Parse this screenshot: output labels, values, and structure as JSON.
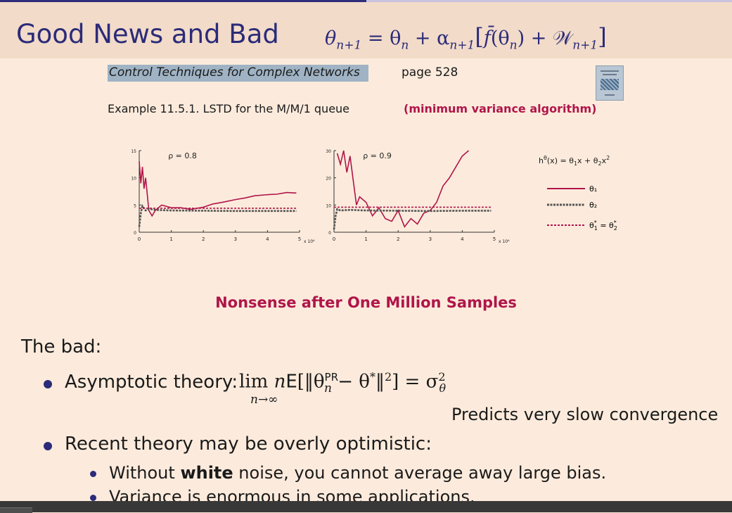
{
  "slide": {
    "title": "Good News and Bad",
    "progress_fraction": 0.5,
    "theme_color": "#2b2b79",
    "accent_color": "#b0154a"
  },
  "header_equation": {
    "lhs": "θ",
    "lhs_sub": "n+1",
    "eq": " = θ",
    "term_sub": "n",
    "plus_alpha": " + α",
    "alpha_sub": "n+1",
    "bracket_open": "[",
    "fbar": "f̄",
    "arg_open": "(θ",
    "arg_sub": "n",
    "arg_close": ")",
    "plus_w": " + 𝒲",
    "w_sub": "n+1",
    "bracket_close": "]"
  },
  "reference": {
    "book_title": "Control Techniques for Complex Networks",
    "page": "page 528",
    "example": "Example 11.5.1.  LSTD for the M/M/1 queue",
    "example_note": "(minimum variance algorithm)"
  },
  "chart_data": [
    {
      "type": "line",
      "title": "ρ = 0.8",
      "x_ticks": [
        "0",
        "1",
        "2",
        "3",
        "4",
        "5"
      ],
      "x_multiplier": "x 10⁶",
      "y_ticks": [
        "0",
        "5",
        "10",
        "15"
      ],
      "ylim": [
        0,
        15
      ],
      "xlim": [
        0,
        5
      ],
      "series": [
        {
          "name": "θ₁",
          "color": "#b0154a",
          "x": [
            0,
            0.05,
            0.1,
            0.15,
            0.2,
            0.25,
            0.3,
            0.4,
            0.5,
            0.7,
            1.0,
            1.3,
            1.6,
            2.0,
            2.3,
            2.6,
            3.0,
            3.3,
            3.6,
            4.0,
            4.3,
            4.6,
            4.9
          ],
          "y": [
            13,
            9,
            12,
            8,
            10,
            7,
            4,
            3,
            4,
            5,
            4.5,
            4.5,
            4.2,
            4.6,
            5.2,
            5.5,
            6.0,
            6.3,
            6.7,
            6.9,
            7.0,
            7.3,
            7.2
          ]
        },
        {
          "name": "θ₂",
          "color": "#555555",
          "x": [
            0,
            0.05,
            0.1,
            0.2,
            0.3,
            0.5,
            1.0,
            2.0,
            3.0,
            4.0,
            4.9
          ],
          "y": [
            1,
            3.5,
            4.8,
            4.0,
            4.3,
            4.1,
            4.0,
            3.95,
            3.9,
            3.9,
            3.9
          ]
        },
        {
          "name": "θ₁* = θ₂*",
          "color": "#b0154a",
          "x": [
            0,
            4.9
          ],
          "y": [
            4.4,
            4.4
          ]
        }
      ]
    },
    {
      "type": "line",
      "title": "ρ = 0.9",
      "x_ticks": [
        "0",
        "1",
        "2",
        "3",
        "4",
        "5"
      ],
      "x_multiplier": "x 10⁶",
      "y_ticks": [
        "0",
        "10",
        "20",
        "30"
      ],
      "ylim": [
        0,
        30
      ],
      "xlim": [
        0,
        5
      ],
      "series": [
        {
          "name": "θ₁",
          "color": "#b0154a",
          "x": [
            0.1,
            0.2,
            0.3,
            0.4,
            0.5,
            0.6,
            0.7,
            0.8,
            0.9,
            1.0,
            1.2,
            1.4,
            1.6,
            1.8,
            2.0,
            2.2,
            2.4,
            2.6,
            2.8,
            3.0,
            3.2,
            3.4,
            3.6,
            3.8,
            4.0,
            4.2
          ],
          "y": [
            29,
            25,
            30,
            22,
            28,
            19,
            10,
            13,
            12,
            11,
            6,
            9,
            5,
            4,
            8,
            2,
            5,
            3,
            7,
            8,
            11,
            17,
            20,
            24,
            28,
            30
          ]
        },
        {
          "name": "θ₂",
          "color": "#555555",
          "x": [
            0,
            0.05,
            0.1,
            0.2,
            0.5,
            1.0,
            2.0,
            3.0,
            4.0,
            4.9
          ],
          "y": [
            1,
            6,
            8.5,
            8.0,
            8.2,
            8.0,
            7.9,
            7.8,
            7.9,
            7.9
          ]
        },
        {
          "name": "θ₁* = θ₂*",
          "color": "#b0154a",
          "x": [
            0,
            4.9
          ],
          "y": [
            9.2,
            9.2
          ]
        }
      ]
    }
  ],
  "legend": {
    "function_label": "h",
    "function_sup": "θ",
    "function_rest": "(x) = θ",
    "function_sub1": "1",
    "function_x": "x + θ",
    "function_sub2": "2",
    "function_x2": "x",
    "function_sup2": "2",
    "item1": "θ₁",
    "item2": "θ₂",
    "item3_a": "θ",
    "item3_a_sup": "*",
    "item3_a_sub": "1",
    "item3_eq": " = ",
    "item3_b": "θ",
    "item3_b_sup": "*",
    "item3_b_sub": "2"
  },
  "caption": "Nonsense after One Million Samples",
  "bad_heading": "The bad:",
  "bullet1": {
    "label": "Asymptotic theory:",
    "lim": "lim",
    "lim_under": "n→∞",
    "n": "n",
    "E": "E",
    "bracket_open": "[‖θ",
    "theta_sup": "PR",
    "theta_sub": "n",
    "minus": " − θ",
    "star": "*",
    "norm_close": "‖",
    "sq": "2",
    "close": "] = σ",
    "sigma_sup": "2",
    "sigma_sub": "θ"
  },
  "prediction": "Predicts very slow convergence",
  "bullet2": "Recent theory may be overly optimistic:",
  "sub1": {
    "pre": "Without ",
    "bold": "white",
    "post": " noise, you cannot average away large bias."
  },
  "sub2": "Variance is enormous in some applications."
}
